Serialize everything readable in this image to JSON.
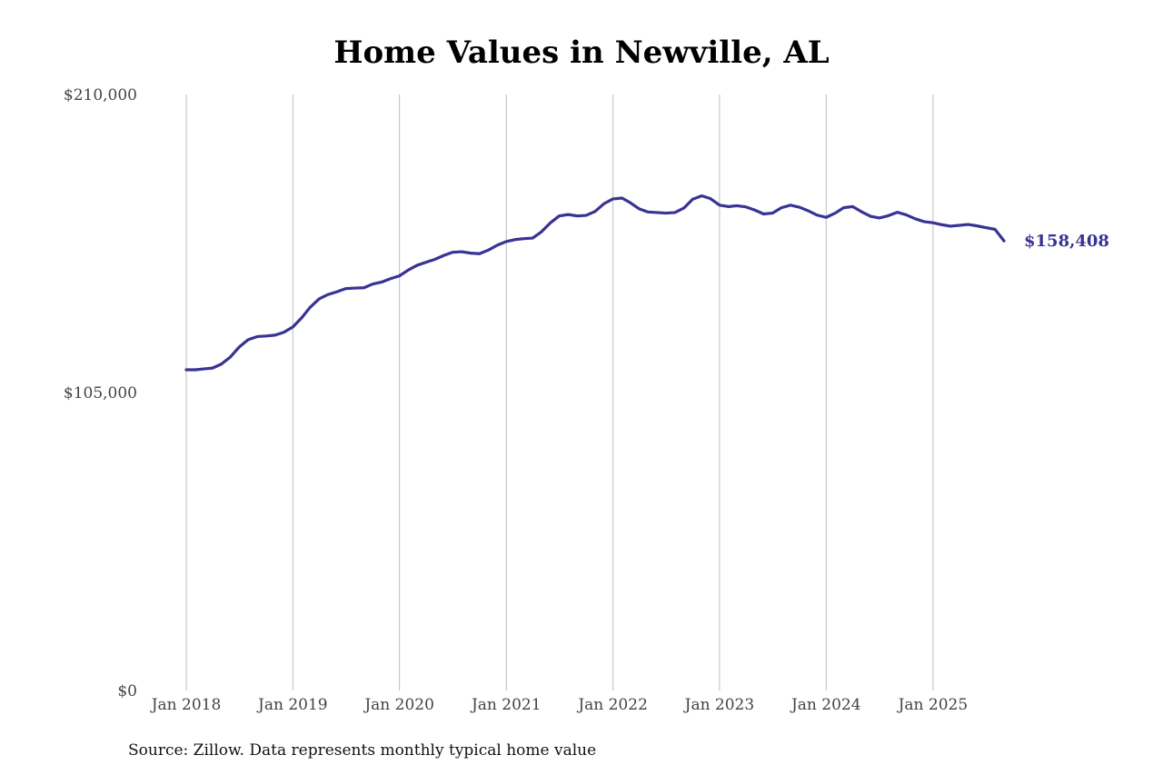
{
  "chart_data": {
    "type": "line",
    "title": "Home Values in Newville, AL",
    "source": "Source: Zillow. Data represents monthly typical home value",
    "ylim": [
      0,
      210000
    ],
    "y_ticks": [
      {
        "value": 0,
        "label": "$0"
      },
      {
        "value": 105000,
        "label": "$105,000"
      },
      {
        "value": 210000,
        "label": "$210,000"
      }
    ],
    "x_ticks": [
      {
        "date": "2018-01",
        "label": "Jan 2018"
      },
      {
        "date": "2019-01",
        "label": "Jan 2019"
      },
      {
        "date": "2020-01",
        "label": "Jan 2020"
      },
      {
        "date": "2021-01",
        "label": "Jan 2021"
      },
      {
        "date": "2022-01",
        "label": "Jan 2022"
      },
      {
        "date": "2023-01",
        "label": "Jan 2023"
      },
      {
        "date": "2024-01",
        "label": "Jan 2024"
      },
      {
        "date": "2025-01",
        "label": "Jan 2025"
      }
    ],
    "grid": {
      "vertical": true,
      "horizontal": false
    },
    "line_color": "#383394",
    "end_label": "$158,408",
    "series": [
      {
        "x": [
          "2018-01",
          "2018-02",
          "2018-03",
          "2018-04",
          "2018-05",
          "2018-06",
          "2018-07",
          "2018-08",
          "2018-09",
          "2018-10",
          "2018-11",
          "2018-12",
          "2019-01",
          "2019-02",
          "2019-03",
          "2019-04",
          "2019-05",
          "2019-06",
          "2019-07",
          "2019-08",
          "2019-09",
          "2019-10",
          "2019-11",
          "2019-12",
          "2020-01",
          "2020-02",
          "2020-03",
          "2020-04",
          "2020-05",
          "2020-06",
          "2020-07",
          "2020-08",
          "2020-09",
          "2020-10",
          "2020-11",
          "2020-12",
          "2021-01",
          "2021-02",
          "2021-03",
          "2021-04",
          "2021-05",
          "2021-06",
          "2021-07",
          "2021-08",
          "2021-09",
          "2021-10",
          "2021-11",
          "2021-12",
          "2022-01",
          "2022-02",
          "2022-03",
          "2022-04",
          "2022-05",
          "2022-06",
          "2022-07",
          "2022-08",
          "2022-09",
          "2022-10",
          "2022-11",
          "2022-12",
          "2023-01",
          "2023-02",
          "2023-03",
          "2023-04",
          "2023-05",
          "2023-06",
          "2023-07",
          "2023-08",
          "2023-09",
          "2023-10",
          "2023-11",
          "2023-12",
          "2024-01",
          "2024-02",
          "2024-03",
          "2024-04",
          "2024-05",
          "2024-06",
          "2024-07",
          "2024-08",
          "2024-09",
          "2024-10",
          "2024-11",
          "2024-12",
          "2025-01",
          "2025-02",
          "2025-03",
          "2025-04",
          "2025-05",
          "2025-06",
          "2025-07",
          "2025-08",
          "2025-09"
        ],
        "values": [
          113000,
          113000,
          113300,
          113600,
          115000,
          117500,
          121000,
          123600,
          124700,
          124900,
          125200,
          126200,
          128100,
          131400,
          135000,
          138000,
          139500,
          140500,
          141600,
          141800,
          141900,
          143200,
          143900,
          145100,
          146100,
          148200,
          149800,
          150900,
          151900,
          153300,
          154400,
          154600,
          154100,
          153900,
          155200,
          156900,
          158200,
          158900,
          159200,
          159400,
          161600,
          164800,
          167200,
          167700,
          167200,
          167400,
          168800,
          171500,
          173200,
          173500,
          171900,
          169700,
          168600,
          168400,
          168200,
          168400,
          170000,
          173100,
          174300,
          173300,
          171000,
          170500,
          170800,
          170400,
          169300,
          167900,
          168200,
          170100,
          171000,
          170300,
          169000,
          167500,
          166700,
          168200,
          170100,
          170500,
          168700,
          167100,
          166500,
          167300,
          168500,
          167600,
          166200,
          165200,
          164800,
          164100,
          163600,
          163900,
          164200,
          163700,
          163100,
          162500,
          158408
        ]
      }
    ]
  }
}
